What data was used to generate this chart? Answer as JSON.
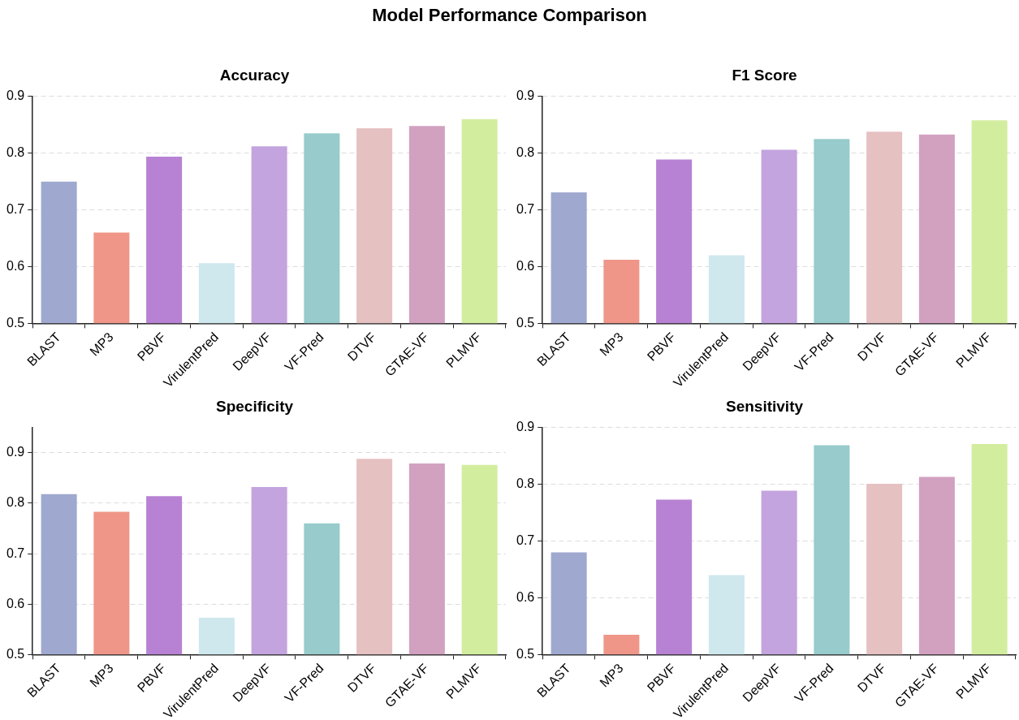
{
  "chart_data": [
    {
      "type": "bar",
      "title": "Accuracy",
      "annotations": [
        "Model Performance Comparison"
      ],
      "categories": [
        "BLAST",
        "MP3",
        "PBVF",
        "VirulentPred",
        "DeepVF",
        "VF-Pred",
        "DTVF",
        "GTAE-VF",
        "PLMVF"
      ],
      "values": [
        0.75,
        0.66,
        0.794,
        0.606,
        0.812,
        0.835,
        0.844,
        0.848,
        0.86
      ],
      "colors": [
        "#9fa8cf",
        "#ef9688",
        "#b782d4",
        "#cfe8ee",
        "#c3a4de",
        "#98cbcb",
        "#e6c1c2",
        "#d2a1c0",
        "#d3ed9f"
      ],
      "ylim": [
        0.5,
        0.9
      ],
      "yticks": [
        0.5,
        0.6,
        0.7,
        0.8,
        0.9
      ],
      "grid": "y",
      "legend": false
    },
    {
      "type": "bar",
      "title": "F1 Score",
      "categories": [
        "BLAST",
        "MP3",
        "PBVF",
        "VirulentPred",
        "DeepVF",
        "VF-Pred",
        "DTVF",
        "GTAE-VF",
        "PLMVF"
      ],
      "values": [
        0.731,
        0.612,
        0.789,
        0.62,
        0.806,
        0.825,
        0.838,
        0.833,
        0.858
      ],
      "colors": [
        "#9fa8cf",
        "#ef9688",
        "#b782d4",
        "#cfe8ee",
        "#c3a4de",
        "#98cbcb",
        "#e6c1c2",
        "#d2a1c0",
        "#d3ed9f"
      ],
      "ylim": [
        0.5,
        0.9
      ],
      "yticks": [
        0.5,
        0.6,
        0.7,
        0.8,
        0.9
      ],
      "grid": "y",
      "legend": false
    },
    {
      "type": "bar",
      "title": "Specificity",
      "categories": [
        "BLAST",
        "MP3",
        "PBVF",
        "VirulentPred",
        "DeepVF",
        "VF-Pred",
        "DTVF",
        "GTAE-VF",
        "PLMVF"
      ],
      "values": [
        0.818,
        0.783,
        0.814,
        0.573,
        0.832,
        0.76,
        0.888,
        0.879,
        0.876
      ],
      "colors": [
        "#9fa8cf",
        "#ef9688",
        "#b782d4",
        "#cfe8ee",
        "#c3a4de",
        "#98cbcb",
        "#e6c1c2",
        "#d2a1c0",
        "#d3ed9f"
      ],
      "ylim": [
        0.5,
        0.95
      ],
      "yticks": [
        0.5,
        0.6,
        0.7,
        0.8,
        0.9
      ],
      "grid": "y",
      "legend": false
    },
    {
      "type": "bar",
      "title": "Sensitivity",
      "categories": [
        "BLAST",
        "MP3",
        "PBVF",
        "VirulentPred",
        "DeepVF",
        "VF-Pred",
        "DTVF",
        "GTAE-VF",
        "PLMVF"
      ],
      "values": [
        0.68,
        0.535,
        0.773,
        0.64,
        0.789,
        0.869,
        0.801,
        0.813,
        0.871
      ],
      "colors": [
        "#9fa8cf",
        "#ef9688",
        "#b782d4",
        "#cfe8ee",
        "#c3a4de",
        "#98cbcb",
        "#e6c1c2",
        "#d2a1c0",
        "#d3ed9f"
      ],
      "ylim": [
        0.5,
        0.9
      ],
      "yticks": [
        0.5,
        0.6,
        0.7,
        0.8,
        0.9
      ],
      "grid": "y",
      "legend": false
    }
  ]
}
